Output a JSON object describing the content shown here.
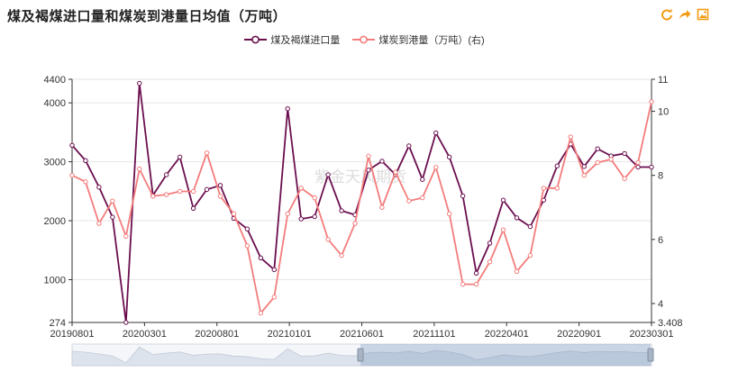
{
  "title": "煤及褐煤进口量和煤炭到港量日均值（万吨）",
  "toolbox": [
    {
      "icon": "refresh-icon",
      "color": "#f39c12"
    },
    {
      "icon": "share-icon",
      "color": "#f39c12"
    },
    {
      "icon": "save-image-icon",
      "color": "#f39c12"
    }
  ],
  "watermark": "紫金天风期货",
  "colors": {
    "series1": "#6b0f4f",
    "series2": "#f47c7c",
    "grid": "#e6e6e6",
    "axis": "#333333"
  },
  "chart_data": {
    "type": "line",
    "x_ticks": [
      "20190801",
      "20200301",
      "20200801",
      "20210101",
      "20210601",
      "20211101",
      "20220401",
      "20220901",
      "20230301"
    ],
    "y_left": {
      "ticks": [
        274,
        1000,
        2000,
        3000,
        4000,
        4400
      ],
      "range": [
        274,
        4400
      ]
    },
    "y_right": {
      "ticks": [
        3.408,
        4,
        6,
        8,
        10,
        11
      ],
      "range": [
        3.408,
        11
      ]
    },
    "legend_position": "top-center",
    "series": [
      {
        "name": "煤及褐煤进口量",
        "axis": "left",
        "values": [
          3280,
          3020,
          2570,
          2060,
          274,
          4330,
          2430,
          2780,
          3080,
          2210,
          2530,
          2600,
          2040,
          1860,
          1370,
          1170,
          3900,
          2030,
          2070,
          2780,
          2170,
          2100,
          2860,
          3010,
          2780,
          3270,
          2700,
          3490,
          3080,
          2420,
          1110,
          1620,
          2350,
          2050,
          1900,
          2350,
          2930,
          3300,
          2920,
          3220,
          3100,
          3140,
          2910,
          2910
        ]
      },
      {
        "name": "煤炭到港量（万吨）(右)",
        "axis": "right",
        "values": [
          8.0,
          7.8,
          6.5,
          7.2,
          6.1,
          8.2,
          7.35,
          7.4,
          7.5,
          7.5,
          8.7,
          7.35,
          6.8,
          5.8,
          3.7,
          4.2,
          6.8,
          7.6,
          7.3,
          6.0,
          5.5,
          6.5,
          8.6,
          7.0,
          8.1,
          7.2,
          7.3,
          8.25,
          6.8,
          4.6,
          4.6,
          5.3,
          6.3,
          5.0,
          5.5,
          7.6,
          7.6,
          9.2,
          8.0,
          8.4,
          8.5,
          7.9,
          8.4,
          10.3
        ]
      }
    ]
  }
}
